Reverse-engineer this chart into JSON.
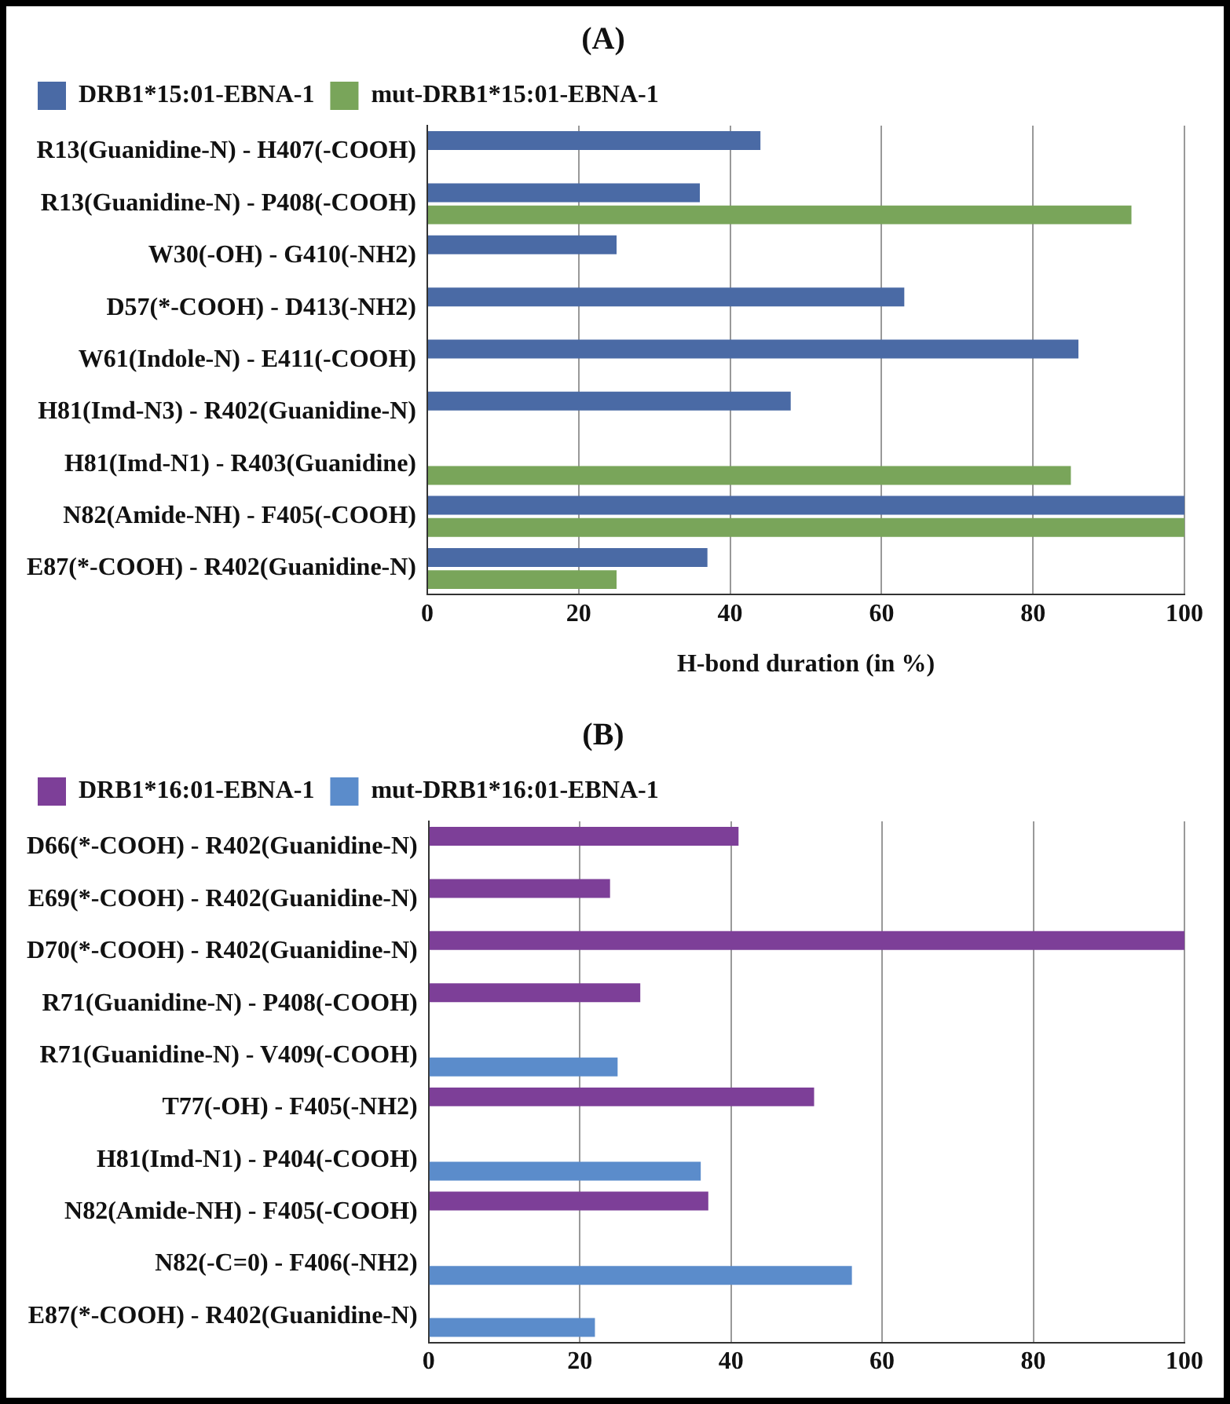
{
  "chart_data": [
    {
      "type": "bar",
      "orientation": "horizontal",
      "title": "(A)",
      "xlabel": "H-bond duration (in %)",
      "categories": [
        "R13(Guanidine-N) - H407(-COOH)",
        "R13(Guanidine-N) - P408(-COOH)",
        "W30(-OH) - G410(-NH2)",
        "D57(*-COOH) - D413(-NH2)",
        "W61(Indole-N) - E411(-COOH)",
        "H81(Imd-N3) - R402(Guanidine-N)",
        "H81(Imd-N1) - R403(Guanidine)",
        "N82(Amide-NH) - F405(-COOH)",
        "E87(*-COOH) - R402(Guanidine-N)"
      ],
      "series": [
        {
          "name": "DRB1*15:01-EBNA-1",
          "color": "#4a6aa5",
          "values": [
            44,
            36,
            25,
            63,
            86,
            48,
            null,
            100,
            37
          ]
        },
        {
          "name": "mut-DRB1*15:01-EBNA-1",
          "color": "#79a55a",
          "values": [
            null,
            93,
            null,
            null,
            null,
            null,
            85,
            100,
            25
          ]
        }
      ],
      "xlim": [
        0,
        100
      ],
      "xticks": [
        0,
        20,
        40,
        60,
        80,
        100
      ],
      "grid": "x",
      "legend": "top left"
    },
    {
      "type": "bar",
      "orientation": "horizontal",
      "title": "(B)",
      "categories": [
        "D66(*-COOH) - R402(Guanidine-N)",
        "E69(*-COOH) - R402(Guanidine-N)",
        "D70(*-COOH) - R402(Guanidine-N)",
        "R71(Guanidine-N) - P408(-COOH)",
        "R71(Guanidine-N) - V409(-COOH)",
        "T77(-OH) - F405(-NH2)",
        "H81(Imd-N1) - P404(-COOH)",
        "N82(Amide-NH) - F405(-COOH)",
        "N82(-C=0) - F406(-NH2)",
        "E87(*-COOH) - R402(Guanidine-N)"
      ],
      "series": [
        {
          "name": "DRB1*16:01-EBNA-1",
          "color": "#7d3f98",
          "values": [
            41,
            24,
            100,
            28,
            null,
            51,
            null,
            37,
            null,
            null
          ]
        },
        {
          "name": "mut-DRB1*16:01-EBNA-1",
          "color": "#5b8ccb",
          "values": [
            null,
            null,
            null,
            null,
            25,
            null,
            36,
            null,
            56,
            22
          ]
        }
      ],
      "xlim": [
        0,
        100
      ],
      "xticks": [
        0,
        20,
        40,
        60,
        80,
        100
      ],
      "grid": "x",
      "legend": "top left"
    }
  ]
}
